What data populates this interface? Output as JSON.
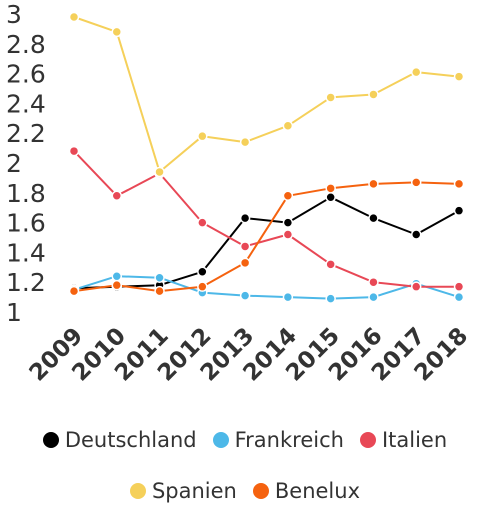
{
  "chart_data": {
    "type": "line",
    "x": [
      "2009",
      "2010",
      "2011",
      "2012",
      "2013",
      "2014",
      "2015",
      "2016",
      "2017",
      "2018"
    ],
    "ylim": [
      1,
      3
    ],
    "yticks": [
      "1",
      "1.2",
      "1.4",
      "1.6",
      "1.8",
      "2",
      "2.2",
      "2.4",
      "2.6",
      "2.8",
      "3"
    ],
    "grid": false,
    "legend_position": "bottom",
    "series": [
      {
        "name": "Deutschland",
        "color": "#000000",
        "values": [
          1.16,
          1.17,
          1.18,
          1.27,
          1.63,
          1.6,
          1.77,
          1.63,
          1.52,
          1.68
        ]
      },
      {
        "name": "Frankreich",
        "color": "#4db8e8",
        "values": [
          1.15,
          1.24,
          1.23,
          1.13,
          1.11,
          1.1,
          1.09,
          1.1,
          1.19,
          1.1
        ]
      },
      {
        "name": "Italien",
        "color": "#e84856",
        "values": [
          2.08,
          1.78,
          1.93,
          1.6,
          1.44,
          1.52,
          1.32,
          1.2,
          1.17,
          1.17
        ]
      },
      {
        "name": "Spanien",
        "color": "#f5d05a",
        "values": [
          2.98,
          2.88,
          1.94,
          2.18,
          2.14,
          2.25,
          2.44,
          2.46,
          2.61,
          2.58
        ]
      },
      {
        "name": "Benelux",
        "color": "#f5620f",
        "values": [
          1.14,
          1.18,
          1.14,
          1.17,
          1.33,
          1.78,
          1.83,
          1.86,
          1.87,
          1.86
        ]
      }
    ]
  },
  "legend_rows": [
    [
      "Deutschland",
      "Frankreich",
      "Italien"
    ],
    [
      "Spanien",
      "Benelux"
    ]
  ]
}
